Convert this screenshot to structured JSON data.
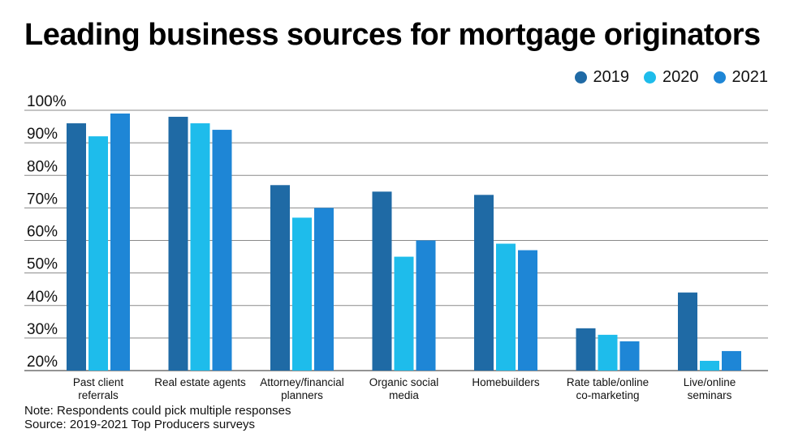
{
  "title": "Leading business sources for mortgage originators",
  "colors": {
    "s2019": "#1f6aa5",
    "s2020": "#1ebceb",
    "s2021": "#1e86d6",
    "grid": "#8a8a8a",
    "axis": "#555555"
  },
  "legend": [
    {
      "label": "2019",
      "color": "#1f6aa5"
    },
    {
      "label": "2020",
      "color": "#1ebceb"
    },
    {
      "label": "2021",
      "color": "#1e86d6"
    }
  ],
  "chart_data": {
    "type": "bar",
    "title": "Leading business sources for mortgage originators",
    "xlabel": "",
    "ylabel": "",
    "ylim": [
      20,
      100
    ],
    "yticks": [
      "20%",
      "30%",
      "40%",
      "50%",
      "60%",
      "70%",
      "80%",
      "90%",
      "100%"
    ],
    "grid": true,
    "legend_position": "top-right",
    "categories": [
      [
        "Past client",
        "referrals"
      ],
      [
        "Real estate agents"
      ],
      [
        "Attorney/financial",
        "planners"
      ],
      [
        "Organic social",
        "media"
      ],
      [
        "Homebuilders"
      ],
      [
        "Rate table/online",
        "co-marketing"
      ],
      [
        "Live/online",
        "seminars"
      ]
    ],
    "series": [
      {
        "name": "2019",
        "color": "#1f6aa5",
        "values": [
          96,
          98,
          77,
          75,
          74,
          33,
          44
        ]
      },
      {
        "name": "2020",
        "color": "#1ebceb",
        "values": [
          92,
          96,
          67,
          55,
          59,
          31,
          23
        ]
      },
      {
        "name": "2021",
        "color": "#1e86d6",
        "values": [
          99,
          94,
          70,
          60,
          57,
          29,
          26
        ]
      }
    ]
  },
  "footnotes": {
    "note": "Note: Respondents could pick multiple responses",
    "source": "Source: 2019-2021 Top Producers surveys"
  }
}
